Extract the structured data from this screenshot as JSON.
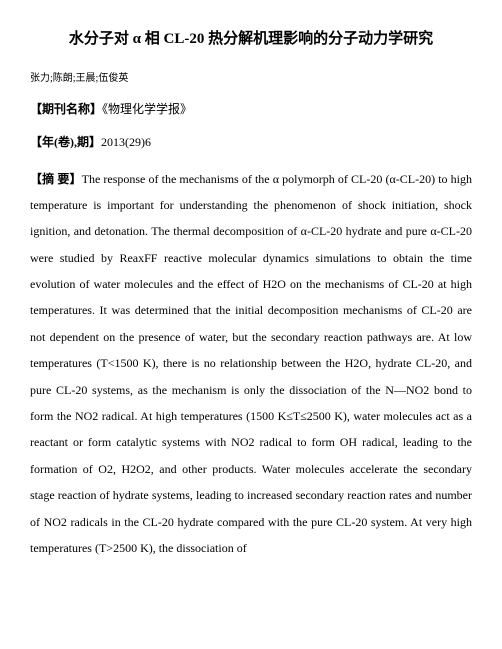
{
  "title": "水分子对 α 相 CL-20 热分解机理影响的分子动力学研究",
  "authors": "张力;陈朗;王晨;伍俊英",
  "journal_label": "【期刊名称】",
  "journal_value": "《物理化学学报》",
  "year_label": "【年(卷),期】",
  "year_value": "2013(29)6",
  "abstract_label": "【摘 要】",
  "abstract_text": "The response of the mechanisms of the α polymorph of CL-20 (α-CL-20) to high temperature is important for understanding the phenomenon of shock initiation, shock ignition, and detonation. The thermal decomposition of α-CL-20 hydrate and pure α-CL-20 were studied by ReaxFF reactive molecular dynamics simulations to obtain the time evolution of water molecules and the effect of H2O on the mechanisms of CL-20 at high temperatures. It was determined that the initial decomposition mechanisms of CL-20 are not dependent on the presence of water, but the secondary reaction pathways are. At low temperatures (T<1500 K), there is no relationship between the H2O, hydrate CL-20, and pure CL-20 systems, as the mechanism is only the dissociation of the N―NO2 bond to form the NO2 radical. At high temperatures (1500 K≤T≤2500 K), water molecules act as a reactant or form catalytic systems with NO2 radical to form OH radical, leading to the formation of O2, H2O2, and other products. Water molecules accelerate the secondary stage reaction of hydrate systems, leading to increased secondary reaction rates and number of NO2 radicals in the CL-20 hydrate compared with the pure CL-20 system. At very high temperatures (T>2500 K), the dissociation of"
}
